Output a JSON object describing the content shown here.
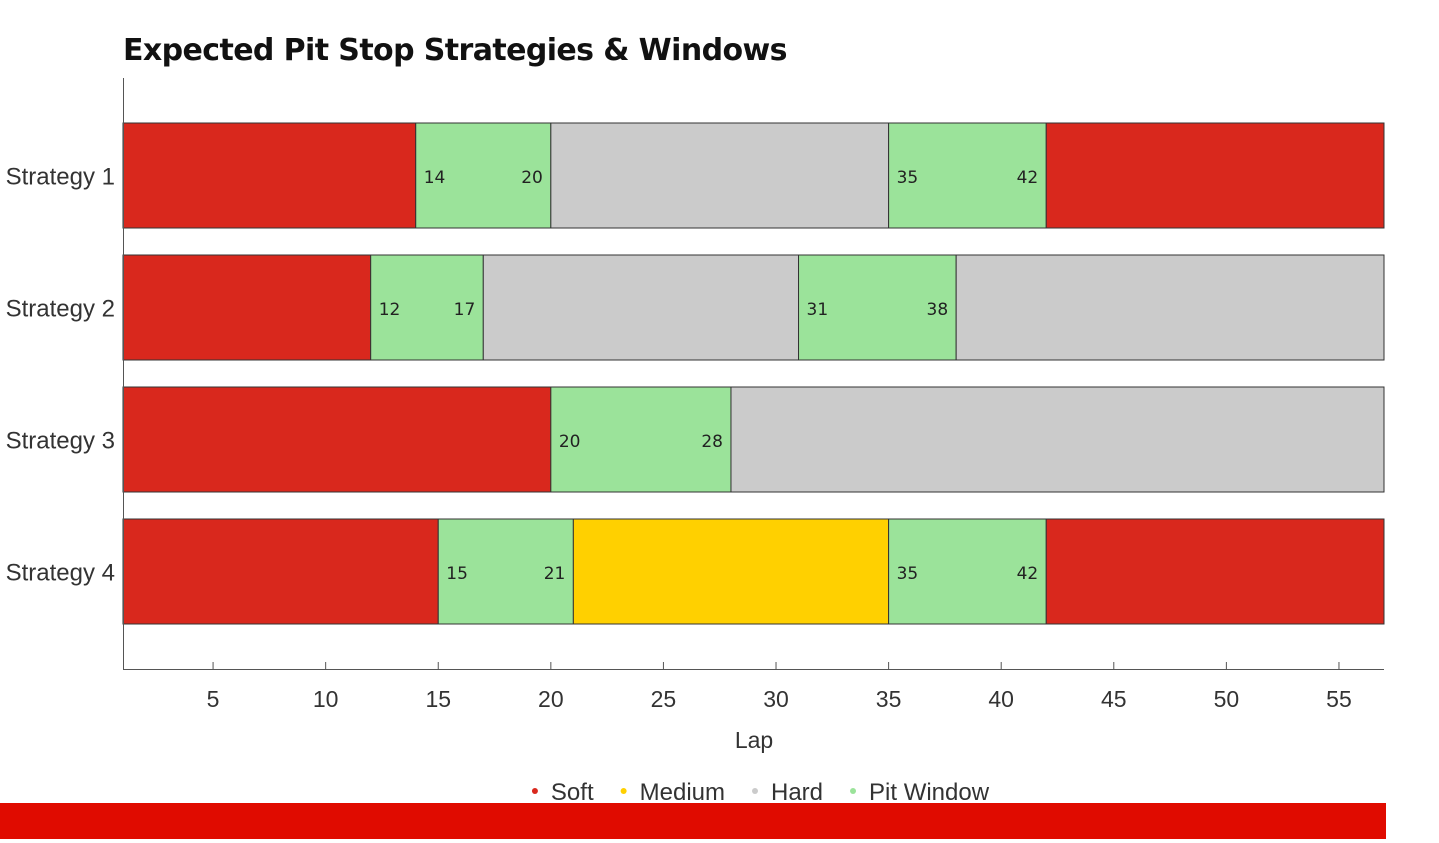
{
  "chart_data": {
    "type": "bar",
    "orientation": "horizontal-stacked",
    "title": "Expected Pit Stop Strategies & Windows",
    "xlabel": "Lap",
    "ylabel": "",
    "xlim": [
      1,
      57
    ],
    "xticks": [
      5,
      10,
      15,
      20,
      25,
      30,
      35,
      40,
      45,
      50,
      55
    ],
    "grid": false,
    "legend_position": "bottom",
    "colors": {
      "Soft": "#d9281d",
      "Medium": "#ffd000",
      "Hard": "#cbcbcb",
      "Pit Window": "#9be39a"
    },
    "legend": [
      "Soft",
      "Medium",
      "Hard",
      "Pit Window"
    ],
    "categories": [
      "Strategy 1",
      "Strategy 2",
      "Strategy 3",
      "Strategy 4"
    ],
    "strategies": [
      {
        "label": "Strategy 1",
        "segments": [
          {
            "compound": "Soft",
            "start": 1,
            "end": 14
          },
          {
            "compound": "Pit Window",
            "start": 14,
            "end": 20
          },
          {
            "compound": "Hard",
            "start": 20,
            "end": 35
          },
          {
            "compound": "Pit Window",
            "start": 35,
            "end": 42
          },
          {
            "compound": "Soft",
            "start": 42,
            "end": 57
          }
        ]
      },
      {
        "label": "Strategy 2",
        "segments": [
          {
            "compound": "Soft",
            "start": 1,
            "end": 12
          },
          {
            "compound": "Pit Window",
            "start": 12,
            "end": 17
          },
          {
            "compound": "Hard",
            "start": 17,
            "end": 31
          },
          {
            "compound": "Pit Window",
            "start": 31,
            "end": 38
          },
          {
            "compound": "Hard",
            "start": 38,
            "end": 57
          }
        ]
      },
      {
        "label": "Strategy 3",
        "segments": [
          {
            "compound": "Soft",
            "start": 1,
            "end": 20
          },
          {
            "compound": "Pit Window",
            "start": 20,
            "end": 28
          },
          {
            "compound": "Hard",
            "start": 28,
            "end": 57
          }
        ]
      },
      {
        "label": "Strategy 4",
        "segments": [
          {
            "compound": "Soft",
            "start": 1,
            "end": 15
          },
          {
            "compound": "Pit Window",
            "start": 15,
            "end": 21
          },
          {
            "compound": "Medium",
            "start": 21,
            "end": 35
          },
          {
            "compound": "Pit Window",
            "start": 35,
            "end": 42
          },
          {
            "compound": "Soft",
            "start": 42,
            "end": 57
          }
        ]
      }
    ]
  },
  "footer_bar_color": "#e00b00"
}
